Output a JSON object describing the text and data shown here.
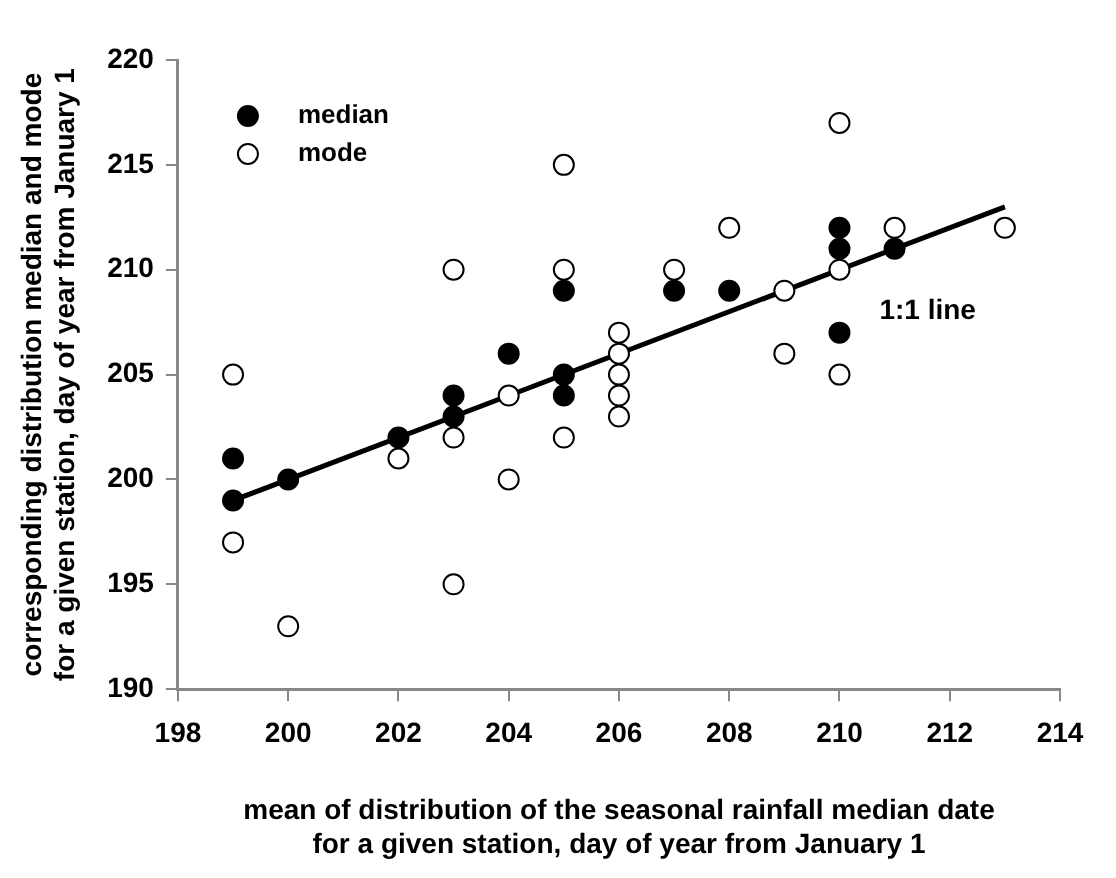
{
  "chart_data": {
    "type": "scatter",
    "xlabel": "mean of distribution of the seasonal rainfall median date\nfor a given station, day of year from January 1",
    "ylabel": "corresponding distribution median and mode\nfor a given station, day of year from January 1",
    "xlim": [
      198,
      214
    ],
    "xticks": [
      198,
      200,
      202,
      204,
      206,
      208,
      210,
      212,
      214
    ],
    "ylim": [
      190,
      220
    ],
    "yticks": [
      190,
      195,
      200,
      205,
      210,
      215,
      220
    ],
    "grid": false,
    "legend": "top left",
    "marker": "circle",
    "series": [
      {
        "name": "median",
        "color": "#000000",
        "x": [
          199,
          199,
          200,
          202,
          203,
          203,
          204,
          205,
          205,
          205,
          207,
          208,
          210,
          210,
          210,
          211
        ],
        "values": [
          201,
          199,
          200,
          202,
          204,
          203,
          206,
          209,
          205,
          204,
          209,
          209,
          212,
          211,
          207,
          211
        ]
      },
      {
        "name": "mode",
        "color": "#ffffff",
        "x": [
          199,
          199,
          200,
          202,
          203,
          203,
          203,
          204,
          204,
          205,
          205,
          205,
          206,
          206,
          206,
          206,
          206,
          207,
          208,
          209,
          209,
          210,
          210,
          210,
          211,
          213
        ],
        "values": [
          205,
          197,
          193,
          201,
          210,
          202,
          195,
          204,
          200,
          215,
          210,
          202,
          207,
          206,
          205,
          204,
          203,
          210,
          212,
          209,
          206,
          217,
          210,
          205,
          212,
          212
        ]
      },
      {
        "type": "line",
        "color": "#000000",
        "marker": "none",
        "x": [
          199,
          213
        ],
        "values": [
          199,
          213
        ]
      }
    ],
    "annotations": [
      "1:1 line"
    ]
  }
}
